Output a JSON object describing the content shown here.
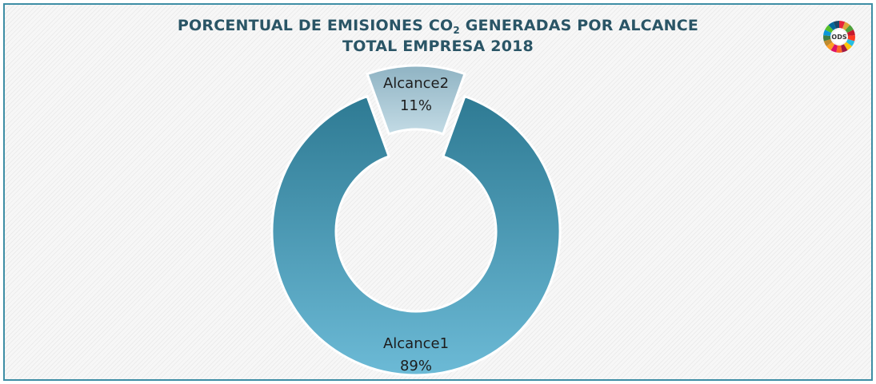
{
  "chart_data": {
    "type": "pie",
    "title_pre": "PORCENTUAL DE EMISIONES CO",
    "title_sub": "2",
    "title_post": " GENERADAS POR ALCANCE",
    "title_line2": "TOTAL EMPRESA 2018",
    "categories": [
      "Alcance1",
      "Alcance2"
    ],
    "values": [
      89,
      11
    ],
    "value_labels": [
      "89%",
      "11%"
    ],
    "donut": true,
    "exploded": [
      "Alcance2"
    ],
    "colors": {
      "alcance1_top": "#2e7a93",
      "alcance1_bottom": "#6cbad6",
      "alcance2_top": "#8fb3c3",
      "alcance2_bottom": "#c3dbe5",
      "frame": "#3e8ea5"
    }
  },
  "logo": {
    "icon": "sdg-wheel-icon",
    "label": "ODS"
  }
}
